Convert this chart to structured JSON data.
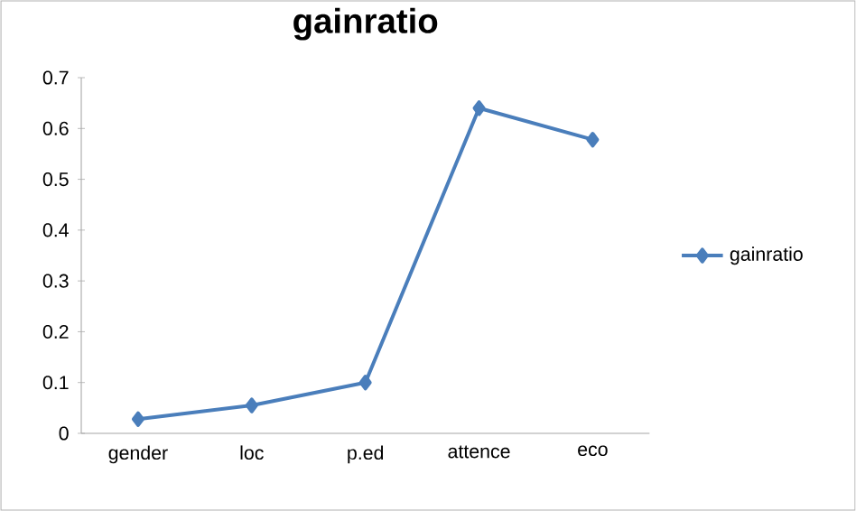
{
  "chart_data": {
    "type": "line",
    "title": "gainratio",
    "categories": [
      "gender",
      "loc",
      "p.ed",
      "attence",
      "eco"
    ],
    "series": [
      {
        "name": "gainratio",
        "color": "#4a7ebb",
        "values": [
          0.028,
          0.055,
          0.1,
          0.64,
          0.578
        ]
      }
    ],
    "ylim": [
      0,
      0.7
    ],
    "yticks": [
      0,
      0.1,
      0.2,
      0.3,
      0.4,
      0.5,
      0.6,
      0.7
    ],
    "marker": "diamond",
    "line_style": "solid",
    "legend": "right",
    "grid": false
  }
}
